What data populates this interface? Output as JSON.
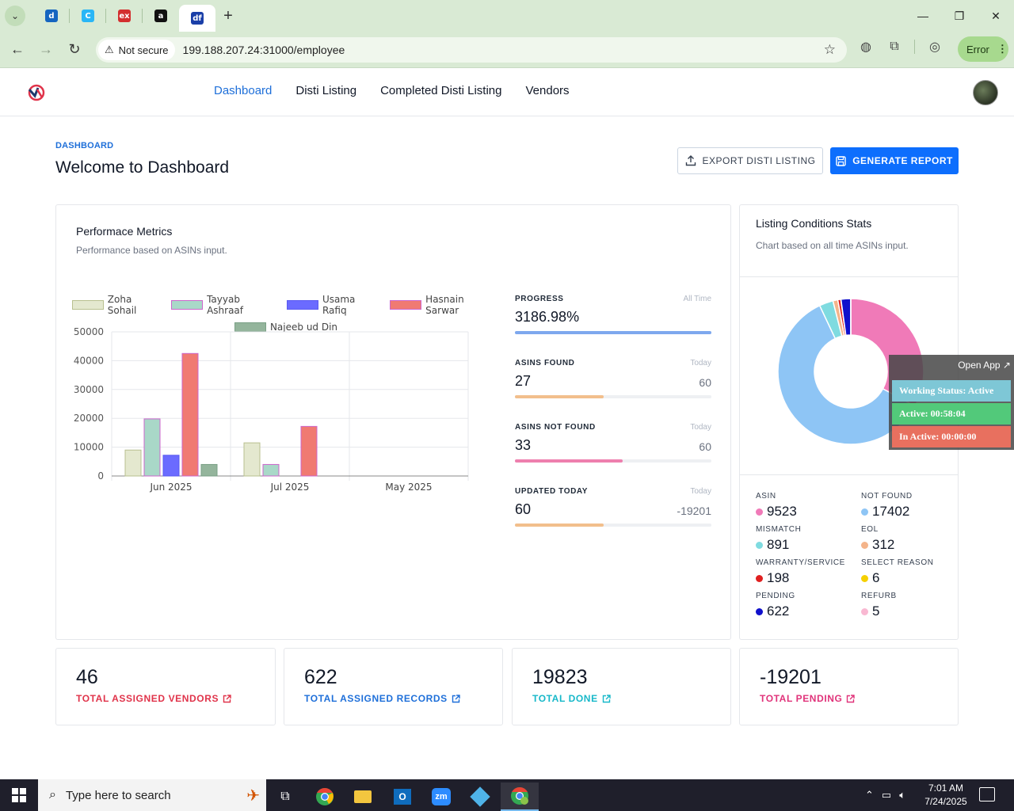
{
  "browser": {
    "tabs": [
      {
        "name": "tab-1",
        "color": "#1565c0",
        "glyph": "d"
      },
      {
        "name": "tab-2",
        "color": "#29b6f6",
        "glyph": "C"
      },
      {
        "name": "tab-3",
        "color": "#d32f2f",
        "glyph": "ex"
      },
      {
        "name": "tab-4",
        "color": "#111111",
        "glyph": "a"
      },
      {
        "name": "tab-5",
        "color": "#1a3fa8",
        "glyph": "df"
      }
    ],
    "security_label": "Not secure",
    "url": "199.188.207.24:31000/employee",
    "profile_status": "Error"
  },
  "nav": {
    "items": [
      "Dashboard",
      "Disti Listing",
      "Completed Disti Listing",
      "Vendors"
    ],
    "active": "Dashboard"
  },
  "page": {
    "breadcrumb": "DASHBOARD",
    "title": "Welcome to Dashboard",
    "export_button": "EXPORT DISTI LISTING",
    "report_button": "GENERATE REPORT"
  },
  "performance": {
    "title": "Performace Metrics",
    "subtitle": "Performance based on ASINs input."
  },
  "chart_data": [
    {
      "type": "bar",
      "categories": [
        "Jun 2025",
        "Jul 2025",
        "May 2025"
      ],
      "ylim": [
        0,
        50000
      ],
      "yticks": [
        0,
        10000,
        20000,
        30000,
        40000,
        50000
      ],
      "grid": true,
      "legend": "top",
      "series": [
        {
          "name": "Zoha Sohail",
          "values": [
            9000,
            11500,
            0
          ],
          "fill": "#e4e8cf",
          "stroke": "#b9c08f"
        },
        {
          "name": "Tayyab Ashraaf",
          "values": [
            19800,
            4000,
            0
          ],
          "fill": "#a9d8c8",
          "stroke": "#cc66cc"
        },
        {
          "name": "Usama Rafiq",
          "values": [
            7200,
            0,
            0
          ],
          "fill": "#6b6bff",
          "stroke": "#5a5af0"
        },
        {
          "name": "Hasnain Sarwar",
          "values": [
            42500,
            17200,
            0
          ],
          "fill": "#f07a72",
          "stroke": "#cc66cc"
        },
        {
          "name": "Najeeb ud Din",
          "values": [
            4000,
            0,
            0
          ],
          "fill": "#94b59c",
          "stroke": "#7aa086"
        }
      ]
    },
    {
      "type": "pie",
      "categories": [
        "ASIN",
        "NOT FOUND",
        "MISMATCH",
        "EOL",
        "WARRANTY/SERVICE",
        "SELECT REASON",
        "PENDING",
        "REFURB"
      ],
      "values": [
        9523,
        17402,
        891,
        312,
        198,
        6,
        622,
        5
      ],
      "colors": [
        "#f07ab8",
        "#8ec5f5",
        "#7fdbe0",
        "#f4b48a",
        "#e02020",
        "#f5d000",
        "#1010cc",
        "#f9b8d2"
      ]
    }
  ],
  "stats": [
    {
      "label": "PROGRESS",
      "period": "All Time",
      "value": "3186.98%",
      "right": "",
      "fill_pct": 100,
      "color": "#7ea8ee"
    },
    {
      "label": "ASINS FOUND",
      "period": "Today",
      "value": "27",
      "right": "60",
      "fill_pct": 45,
      "color": "#f2bf8c"
    },
    {
      "label": "ASINS NOT FOUND",
      "period": "Today",
      "value": "33",
      "right": "60",
      "fill_pct": 55,
      "color": "#ee7fae"
    },
    {
      "label": "UPDATED TODAY",
      "period": "Today",
      "value": "60",
      "right": "-19201",
      "fill_pct": 45,
      "color": "#f2bf8c"
    }
  ],
  "conditions": {
    "title": "Listing Conditions Stats",
    "subtitle": "Chart based on all time ASINs input.",
    "items": [
      {
        "label": "ASIN",
        "value": "9523",
        "color": "#f07ab8"
      },
      {
        "label": "NOT FOUND",
        "value": "17402",
        "color": "#8ec5f5"
      },
      {
        "label": "MISMATCH",
        "value": "891",
        "color": "#7fdbe0"
      },
      {
        "label": "EOL",
        "value": "312",
        "color": "#f4b48a"
      },
      {
        "label": "WARRANTY/SERVICE",
        "value": "198",
        "color": "#e02020"
      },
      {
        "label": "SELECT REASON",
        "value": "6",
        "color": "#f5d000"
      },
      {
        "label": "PENDING",
        "value": "622",
        "color": "#1010cc"
      },
      {
        "label": "REFURB",
        "value": "5",
        "color": "#f9b8d2"
      }
    ]
  },
  "widget": {
    "open_app": "Open App ↗",
    "working_status": "Working Status: Active",
    "active": "Active: 00:58:04",
    "inactive": "In Active: 00:00:00",
    "colors": {
      "working": "#7ec7d6",
      "active": "#52c97a",
      "inactive": "#e8705f"
    }
  },
  "kpis": [
    {
      "value": "46",
      "label": "TOTAL ASSIGNED VENDORS",
      "color": "#e0334a"
    },
    {
      "value": "622",
      "label": "TOTAL ASSIGNED RECORDS",
      "color": "#1e6fd9"
    },
    {
      "value": "19823",
      "label": "TOTAL DONE",
      "color": "#17b8c9"
    },
    {
      "value": "-19201",
      "label": "TOTAL PENDING",
      "color": "#e0337a"
    }
  ],
  "taskbar": {
    "search_placeholder": "Type here to search",
    "time": "7:01 AM",
    "date": "7/24/2025"
  }
}
